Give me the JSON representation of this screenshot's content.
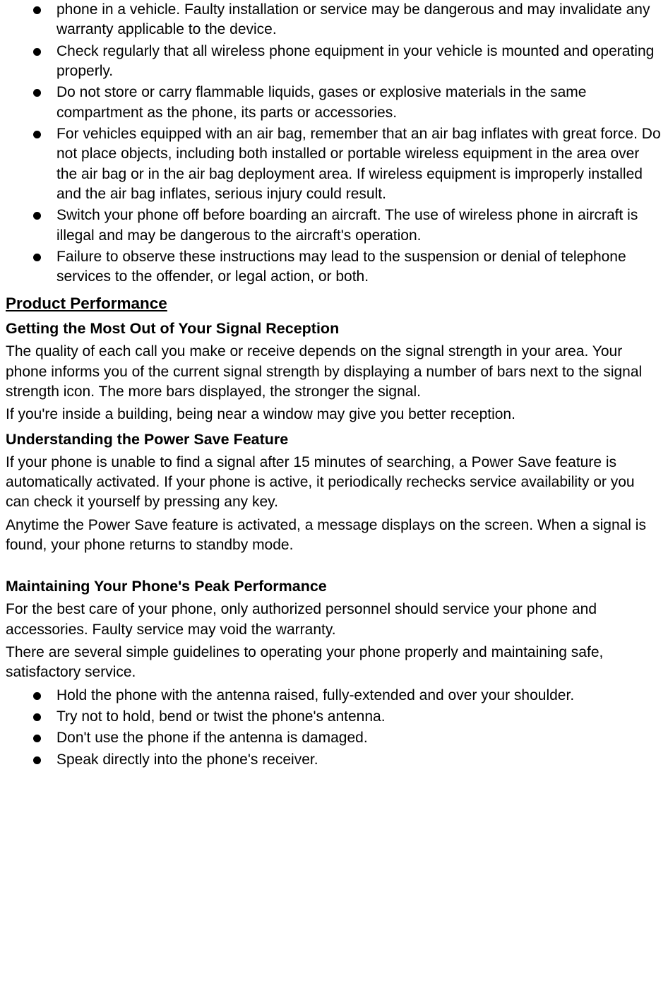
{
  "colors": {
    "text": "#000000",
    "background": "#ffffff",
    "bullet": "#000000"
  },
  "typography": {
    "body_font_family": "Verdana",
    "body_fontsize_pt": 16,
    "heading_fontsize_pt": 17,
    "line_height": 1.35
  },
  "top_bullets": [
    "phone in a vehicle. Faulty installation or service may be dangerous and may invalidate any warranty applicable to the device.",
    "Check regularly that all wireless phone equipment in your vehicle is mounted and operating properly.",
    "Do not store or carry flammable liquids, gases or explosive materials in the same compartment as the phone, its parts or accessories.",
    "For vehicles equipped with an air bag, remember that an air bag inflates with great force. Do not place objects, including both installed or portable wireless equipment in the area over the air bag or in the air bag deployment area. If wireless equipment is improperly installed and the air bag inflates, serious injury could result.",
    "Switch your phone off before boarding an aircraft. The use of wireless phone in aircraft is illegal and may be dangerous to the aircraft's operation.",
    "Failure to observe these instructions may lead to the suspension or denial of telephone services to the offender, or legal action, or both."
  ],
  "section_product_performance": {
    "heading": "Product Performance",
    "signal": {
      "heading": "Getting the Most Out of Your Signal Reception",
      "p1": "The quality of each call you make or receive depends on the signal strength in your area. Your phone informs you of the current signal strength by displaying a number of bars next to the signal strength icon. The more bars displayed, the stronger the signal.",
      "p2": "If you're inside a building, being near a window may give you better reception."
    },
    "power_save": {
      "heading": "Understanding the Power Save Feature",
      "p1": "If your phone is unable to find a signal after 15 minutes of searching, a Power Save feature is automatically activated. If your phone is active, it periodically rechecks service availability or you can check it yourself by pressing any key.",
      "p2": "Anytime the Power Save feature is activated, a message displays on the screen. When a signal is found, your phone returns to standby mode."
    },
    "maintaining": {
      "heading": "Maintaining Your Phone's Peak Performance",
      "p1": "For the best care of your phone, only authorized personnel should service your phone and accessories. Faulty service may void the warranty.",
      "p2": "There are several simple guidelines to operating your phone properly and maintaining safe, satisfactory service.",
      "bullets": [
        "Hold the phone with the antenna raised, fully-extended and over your shoulder.",
        "Try not to hold, bend or twist the phone's antenna.",
        "Don't use the phone if the antenna is damaged.",
        "Speak directly into the phone's receiver."
      ]
    }
  }
}
